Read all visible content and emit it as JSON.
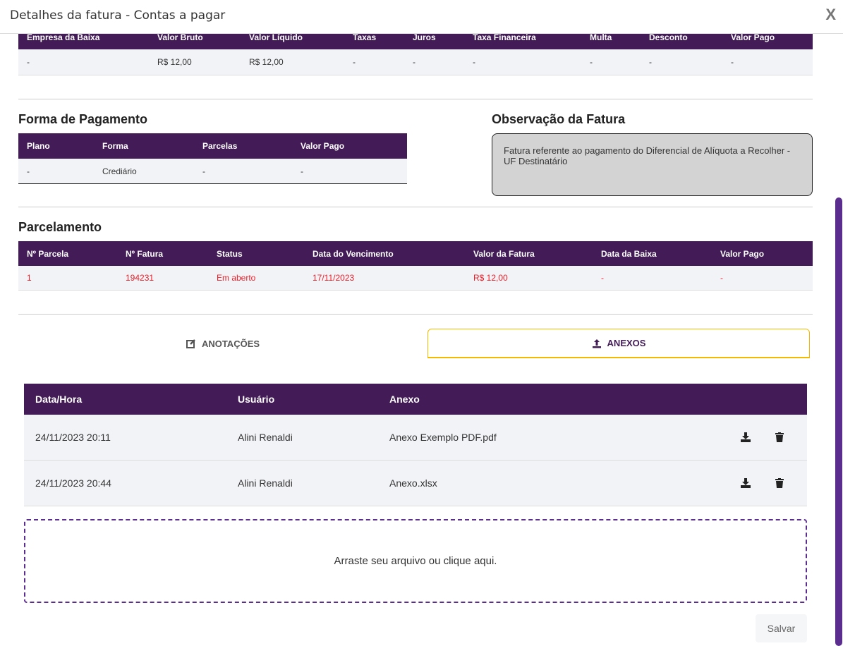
{
  "title": "Detalhes da fatura - Contas a pagar",
  "close_label": "X",
  "baixa": {
    "headers": [
      "Empresa da Baixa",
      "Valor Bruto",
      "Valor Líquido",
      "Taxas",
      "Juros",
      "Taxa Financeira",
      "Multa",
      "Desconto",
      "Valor Pago"
    ],
    "rows": [
      [
        "-",
        "R$ 12,00",
        "R$ 12,00",
        "-",
        "-",
        "-",
        "-",
        "-",
        "-"
      ]
    ]
  },
  "forma": {
    "title": "Forma de Pagamento",
    "headers": [
      "Plano",
      "Forma",
      "Parcelas",
      "Valor Pago"
    ],
    "rows": [
      [
        "-",
        "Crediário",
        "-",
        "-"
      ]
    ]
  },
  "observacao": {
    "title": "Observação da Fatura",
    "text": "Fatura referente ao pagamento do Diferencial de Alíquota a Recolher - UF Destinatário"
  },
  "parcelamento": {
    "title": "Parcelamento",
    "headers": [
      "Nº Parcela",
      "Nº Fatura",
      "Status",
      "Data do Vencimento",
      "Valor da Fatura",
      "Data da Baixa",
      "Valor Pago"
    ],
    "rows": [
      [
        "1",
        "194231",
        "Em aberto",
        "17/11/2023",
        "R$ 12,00",
        "-",
        "-"
      ]
    ],
    "row_color": "#e8212b"
  },
  "tabs": [
    {
      "label": "ANOTAÇÕES",
      "icon": "edit-icon",
      "active": false
    },
    {
      "label": "ANEXOS",
      "icon": "upload-icon",
      "active": true
    }
  ],
  "anexos": {
    "headers": [
      "Data/Hora",
      "Usuário",
      "Anexo"
    ],
    "rows": [
      [
        "24/11/2023 20:11",
        "Alini Renaldi",
        "Anexo Exemplo PDF.pdf"
      ],
      [
        "24/11/2023 20:44",
        "Alini Renaldi",
        "Anexo.xlsx"
      ]
    ]
  },
  "dropzone": "Arraste seu arquivo ou clique aqui.",
  "save_label": "Salvar",
  "colors": {
    "header": "#431c57",
    "accent": "#5b2d8e",
    "tab_active_border": "#f5b800",
    "row_bg": "#f2f3f7"
  }
}
